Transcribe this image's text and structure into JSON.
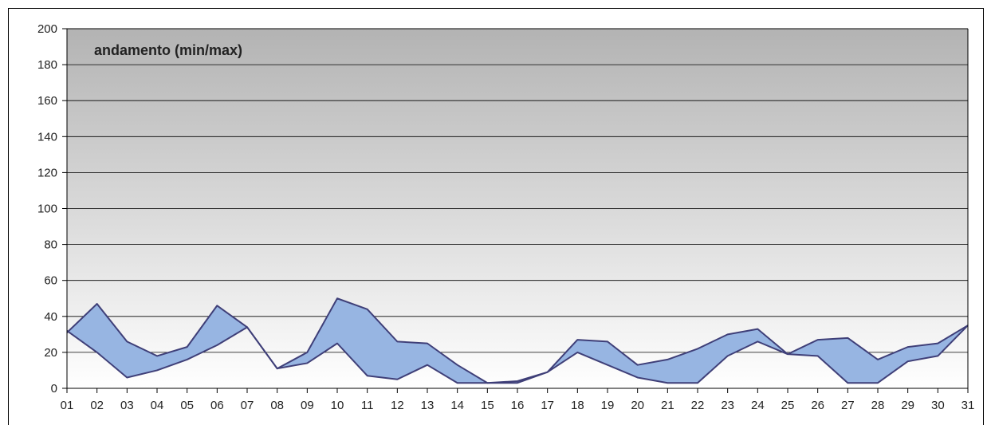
{
  "chart_data": {
    "type": "area",
    "title": "andamento (min/max)",
    "xlabel": "",
    "ylabel": "",
    "categories": [
      "01",
      "02",
      "03",
      "04",
      "05",
      "06",
      "07",
      "08",
      "09",
      "10",
      "11",
      "12",
      "13",
      "14",
      "15",
      "16",
      "17",
      "18",
      "19",
      "20",
      "21",
      "22",
      "23",
      "24",
      "25",
      "26",
      "27",
      "28",
      "29",
      "30",
      "31"
    ],
    "ylim": [
      0,
      200
    ],
    "yticks": [
      0,
      20,
      40,
      60,
      80,
      100,
      120,
      140,
      160,
      180,
      200
    ],
    "grid": true,
    "legend": "none",
    "series": [
      {
        "values": [
          31,
          47,
          26,
          18,
          23,
          46,
          34,
          11,
          20,
          50,
          44,
          26,
          25,
          13,
          3,
          4,
          9,
          27,
          26,
          13,
          16,
          22,
          30,
          33,
          19,
          27,
          28,
          16,
          23,
          25,
          35
        ]
      },
      {
        "values": [
          32,
          20,
          6,
          10,
          16,
          24,
          34,
          11,
          14,
          25,
          7,
          5,
          13,
          3,
          3,
          3,
          9,
          20,
          13,
          6,
          3,
          3,
          18,
          26,
          19,
          18,
          3,
          3,
          15,
          18,
          35
        ]
      }
    ],
    "colors": {
      "band_fill": "#97b5e2",
      "line": "#3f3f78",
      "bg_top": "#b3b3b3",
      "bg_bottom": "#ffffff",
      "grid": "#000000"
    }
  }
}
